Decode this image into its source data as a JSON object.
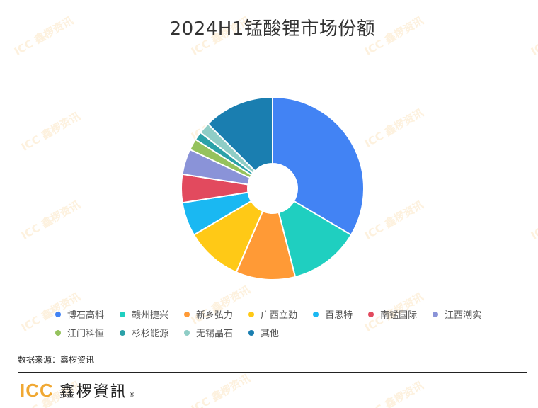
{
  "title": "2024H1锰酸锂市场份额",
  "source_text": "数据来源：鑫椤资讯",
  "footer": {
    "logo_icc": "ICC",
    "logo_cn": "鑫椤資訊",
    "logo_reg": "®"
  },
  "watermark_text": "ICC 鑫椤资讯",
  "chart_data": {
    "type": "pie",
    "donut": true,
    "title": "2024H1锰酸锂市场份额",
    "legend_position": "bottom",
    "labels": [
      "博石高科",
      "赣州捷兴",
      "新乡弘力",
      "广西立劲",
      "百思特",
      "南锰国际",
      "江西潮实",
      "江门科恒",
      "杉杉能源",
      "无锡晶石",
      "其他"
    ],
    "values": [
      33.5,
      12.5,
      10.5,
      10.0,
      6.0,
      5.0,
      4.5,
      2.0,
      1.5,
      2.0,
      12.5
    ],
    "colors": [
      "#4283f4",
      "#1fcfc0",
      "#ff9a36",
      "#ffc916",
      "#1ab8f2",
      "#e24a5e",
      "#8a93d8",
      "#95c25d",
      "#2ba1a8",
      "#8fcdc6",
      "#1a7eb0"
    ]
  }
}
